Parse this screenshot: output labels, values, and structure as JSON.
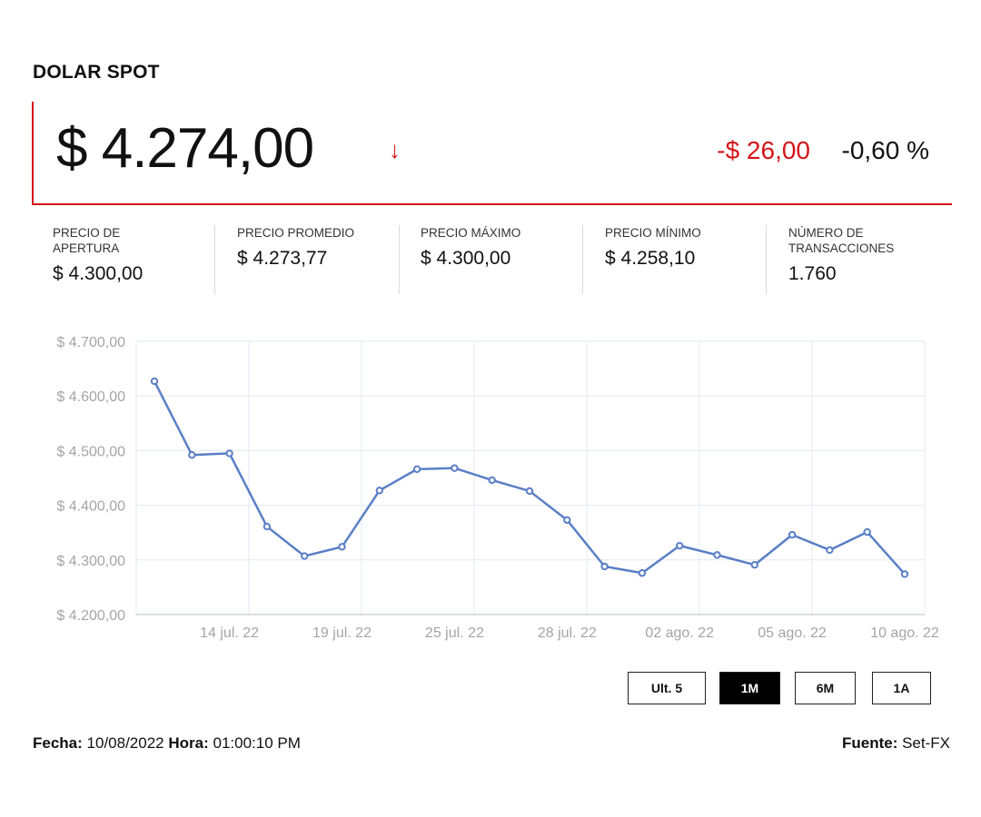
{
  "title": "DOLAR SPOT",
  "price": "$ 4.274,00",
  "direction_icon": "arrow-down-icon",
  "change": "-$ 26,00",
  "change_pct": "-0,60 %",
  "colors": {
    "accent": "#d4141a",
    "line": "#5b7fc6",
    "grid": "#e3e8f2"
  },
  "stats": [
    {
      "label": "PRECIO DE APERTURA",
      "value": "$ 4.300,00"
    },
    {
      "label": "PRECIO PROMEDIO",
      "value": "$ 4.273,77"
    },
    {
      "label": "PRECIO MÁXIMO",
      "value": "$ 4.300,00"
    },
    {
      "label": "PRECIO MÍNIMO",
      "value": "$ 4.258,10"
    },
    {
      "label": "NÚMERO DE TRANSACCIONES",
      "value": "1.760"
    }
  ],
  "chart_data": {
    "type": "line",
    "x": [
      "12 jul. 22",
      "13 jul. 22",
      "14 jul. 22",
      "15 jul. 22",
      "18 jul. 22",
      "19 jul. 22",
      "21 jul. 22",
      "22 jul. 22",
      "25 jul. 22",
      "26 jul. 22",
      "27 jul. 22",
      "28 jul. 22",
      "29 jul. 22",
      "01 ago. 22",
      "02 ago. 22",
      "03 ago. 22",
      "04 ago. 22",
      "05 ago. 22",
      "08 ago. 22",
      "09 ago. 22",
      "10 ago. 22"
    ],
    "values": [
      4627,
      4492,
      4495,
      4361,
      4307,
      4324,
      4427,
      4466,
      4468,
      4446,
      4426,
      4373,
      4288,
      4276,
      4326,
      4309,
      4291,
      4346,
      4318,
      4351,
      4274
    ],
    "xticks": [
      "14 jul. 22",
      "19 jul. 22",
      "25 jul. 22",
      "28 jul. 22",
      "02 ago. 22",
      "05 ago. 22",
      "10 ago. 22"
    ],
    "yticks": [
      "$ 4.700,00",
      "$ 4.600,00",
      "$ 4.500,00",
      "$ 4.400,00",
      "$ 4.300,00",
      "$ 4.200,00"
    ],
    "ylim": [
      4200,
      4700
    ],
    "grid": true
  },
  "ranges": [
    {
      "label": "Ult. 5",
      "active": false
    },
    {
      "label": "1M",
      "active": true
    },
    {
      "label": "6M",
      "active": false
    },
    {
      "label": "1A",
      "active": false
    }
  ],
  "footer": {
    "fecha_label": "Fecha:",
    "fecha": "10/08/2022",
    "hora_label": "Hora:",
    "hora": "01:00:10 PM",
    "fuente_label": "Fuente:",
    "fuente": "Set-FX"
  }
}
